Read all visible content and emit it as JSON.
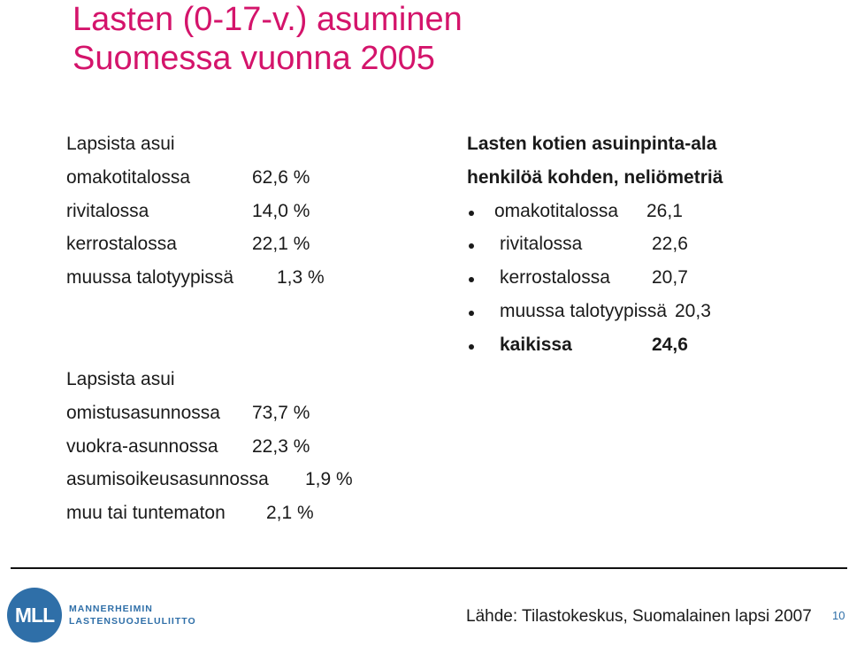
{
  "title": {
    "line1": "Lasten (0-17-v.) asuminen",
    "line2": "Suomessa vuonna 2005"
  },
  "housing_type": {
    "heading": "Lapsista asui",
    "items": [
      {
        "label": "omakotitalossa",
        "value": "62,6 %"
      },
      {
        "label": "rivitalossa",
        "value": "14,0 %"
      },
      {
        "label": "kerrostalossa",
        "value": "22,1 %"
      },
      {
        "label": "muussa talotyypissä",
        "value": "1,3 %"
      }
    ]
  },
  "tenure": {
    "heading": "Lapsista asui",
    "items": [
      {
        "label": "omistusasunnossa",
        "value": "73,7 %"
      },
      {
        "label": "vuokra-asunnossa",
        "value": "22,3 %"
      },
      {
        "label": "asumisoikeusasunnossa",
        "value": "1,9 %"
      },
      {
        "label": "muu tai tuntematon",
        "value": "2,1 %"
      }
    ]
  },
  "floor_area": {
    "heading_line1": "Lasten kotien asuinpinta-ala",
    "heading_line2": "henkilöä kohden, neliömetriä",
    "items": [
      {
        "label": "omakotitalossa",
        "value": "26,1"
      },
      {
        "label": "rivitalossa",
        "value": "22,6"
      },
      {
        "label": "kerrostalossa",
        "value": "20,7"
      },
      {
        "label": "muussa talotyypissä",
        "value": "20,3"
      },
      {
        "label": "kaikissa",
        "value": "24,6"
      }
    ]
  },
  "logo": {
    "initials": "MLL",
    "name_line1": "MANNERHEIMIN",
    "name_line2": "LASTENSUOJELULIITTO"
  },
  "footer": {
    "source": "Lähde: Tilastokeskus, Suomalainen lapsi 2007",
    "page_number": "10"
  },
  "colors": {
    "title": "#d4146b",
    "brand": "#2f6fa8"
  }
}
